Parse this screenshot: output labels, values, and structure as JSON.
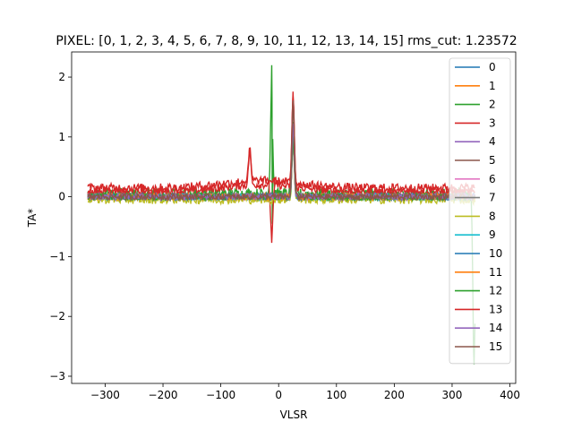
{
  "chart_data": {
    "type": "line",
    "title": "PIXEL: [0, 1, 2, 3, 4, 5, 6, 7, 8, 9, 10, 11, 12, 13, 14, 15]   rms_cut: 1.23572",
    "xlabel": "VLSR",
    "ylabel": "TA*",
    "xlim": [
      -358,
      410
    ],
    "ylim": [
      -3.12,
      2.42
    ],
    "x_ticks": [
      -300,
      -200,
      -100,
      0,
      100,
      200,
      300,
      400
    ],
    "y_ticks": [
      -3,
      -2,
      -1,
      0,
      1,
      2
    ],
    "grid": false,
    "legend_position": "right",
    "x_range": [
      -330,
      340
    ],
    "series": [
      {
        "name": "0",
        "color": "#1f77b4",
        "baseline": 0.0,
        "noise": 0.05,
        "spikes": [
          [
            25,
            1.0
          ]
        ]
      },
      {
        "name": "1",
        "color": "#ff7f0e",
        "baseline": 0.0,
        "noise": 0.05,
        "spikes": [
          [
            25,
            1.0
          ]
        ]
      },
      {
        "name": "2",
        "color": "#2ca02c",
        "baseline": 0.05,
        "noise": 0.09,
        "spikes": [
          [
            -12,
            2.15
          ],
          [
            -11,
            -0.5
          ],
          [
            25,
            1.2
          ],
          [
            338,
            -2.85
          ]
        ]
      },
      {
        "name": "3",
        "color": "#d62728",
        "baseline": 0.08,
        "noise": 0.06,
        "spikes": [
          [
            -50,
            0.6
          ],
          [
            -12,
            -0.85
          ],
          [
            25,
            1.6
          ]
        ]
      },
      {
        "name": "4",
        "color": "#9467bd",
        "baseline": 0.0,
        "noise": 0.05,
        "spikes": [
          [
            25,
            1.0
          ]
        ]
      },
      {
        "name": "5",
        "color": "#8c564b",
        "baseline": 0.0,
        "noise": 0.05,
        "spikes": [
          [
            25,
            1.6
          ]
        ]
      },
      {
        "name": "6",
        "color": "#e377c2",
        "baseline": 0.0,
        "noise": 0.05,
        "spikes": [
          [
            25,
            1.0
          ]
        ]
      },
      {
        "name": "7",
        "color": "#7f7f7f",
        "baseline": 0.0,
        "noise": 0.05,
        "spikes": [
          [
            25,
            1.0
          ]
        ]
      },
      {
        "name": "8",
        "color": "#bcbd22",
        "baseline": -0.04,
        "noise": 0.08,
        "spikes": [
          [
            25,
            1.0
          ]
        ]
      },
      {
        "name": "9",
        "color": "#17becf",
        "baseline": 0.0,
        "noise": 0.05,
        "spikes": [
          [
            25,
            1.0
          ]
        ]
      },
      {
        "name": "10",
        "color": "#1f77b4",
        "baseline": 0.0,
        "noise": 0.05,
        "spikes": [
          [
            25,
            1.0
          ]
        ]
      },
      {
        "name": "11",
        "color": "#ff7f0e",
        "baseline": 0.0,
        "noise": 0.05,
        "spikes": [
          [
            25,
            1.0
          ]
        ]
      },
      {
        "name": "12",
        "color": "#2ca02c",
        "baseline": 0.0,
        "noise": 0.06,
        "spikes": [
          [
            25,
            1.0
          ]
        ]
      },
      {
        "name": "13",
        "color": "#d62728",
        "baseline": 0.15,
        "noise": 0.07,
        "spikes": [
          [
            -50,
            0.55
          ],
          [
            25,
            1.5
          ]
        ]
      },
      {
        "name": "14",
        "color": "#9467bd",
        "baseline": 0.0,
        "noise": 0.05,
        "spikes": [
          [
            25,
            1.2
          ]
        ]
      },
      {
        "name": "15",
        "color": "#8c564b",
        "baseline": 0.0,
        "noise": 0.05,
        "spikes": [
          [
            25,
            1.6
          ]
        ]
      }
    ]
  }
}
